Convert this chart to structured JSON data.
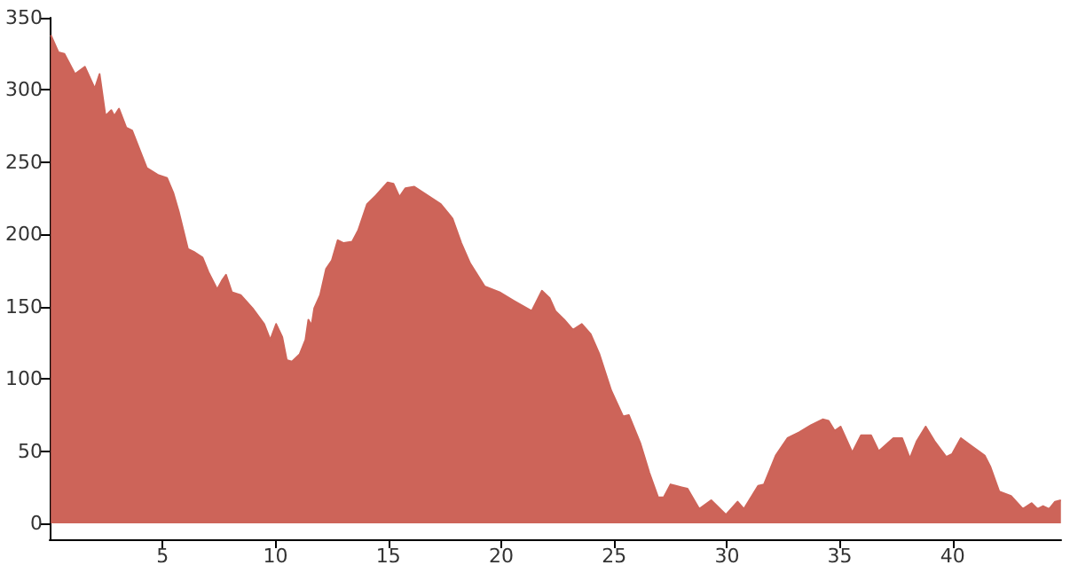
{
  "chart_data": {
    "type": "area",
    "color": "#cd6459",
    "x": [
      0.05,
      0.39,
      0.65,
      1.12,
      1.56,
      2.0,
      2.21,
      2.47,
      2.73,
      2.86,
      3.07,
      3.39,
      3.65,
      4.3,
      4.82,
      5.2,
      5.47,
      5.73,
      6.12,
      6.38,
      6.77,
      7.03,
      7.42,
      7.63,
      7.81,
      8.07,
      8.46,
      8.98,
      9.5,
      9.77,
      10.03,
      10.3,
      10.5,
      10.73,
      11.07,
      11.33,
      11.46,
      11.6,
      11.72,
      11.98,
      12.24,
      12.5,
      12.76,
      13.02,
      13.4,
      13.67,
      14.06,
      14.45,
      14.97,
      15.23,
      15.49,
      15.76,
      16.15,
      16.54,
      17.32,
      17.84,
      18.23,
      18.62,
      19.27,
      19.92,
      20.57,
      21.35,
      21.8,
      22.14,
      22.4,
      22.79,
      23.18,
      23.57,
      23.96,
      24.35,
      24.87,
      25.4,
      25.65,
      26.17,
      26.56,
      26.95,
      27.2,
      27.5,
      27.99,
      28.25,
      28.77,
      29.3,
      29.95,
      30.47,
      30.75,
      31.38,
      31.64,
      32.16,
      32.68,
      33.2,
      33.72,
      34.24,
      34.5,
      34.77,
      35.03,
      35.55,
      35.94,
      36.38,
      36.72,
      37.37,
      37.76,
      38.1,
      38.41,
      38.8,
      39.19,
      39.71,
      39.97,
      40.36,
      40.88,
      41.41,
      41.67,
      42.06,
      42.58,
      43.1,
      43.49,
      43.75,
      44.0,
      44.27,
      44.53,
      44.79
    ],
    "values": [
      338,
      326,
      325,
      311,
      316,
      301,
      311,
      282,
      286,
      282,
      287,
      274,
      272,
      246,
      241,
      239,
      229,
      215,
      190,
      188,
      184,
      174,
      162,
      168,
      172,
      160,
      158,
      149,
      138,
      127,
      138,
      129,
      113,
      112,
      117,
      127,
      141,
      137,
      149,
      158,
      176,
      182,
      196,
      194,
      195,
      203,
      221,
      227,
      236,
      235,
      226,
      232,
      233,
      229,
      221,
      211,
      194,
      180,
      164,
      160,
      154,
      147,
      161,
      156,
      147,
      141,
      134,
      138,
      131,
      117,
      92,
      74,
      75,
      55,
      35,
      18,
      18,
      27,
      25,
      24,
      10,
      16,
      6,
      15,
      10,
      26,
      27,
      47,
      59,
      63,
      68,
      72,
      71,
      64,
      67,
      49,
      61,
      61,
      50,
      59,
      59,
      45,
      57,
      67,
      57,
      46,
      48,
      59,
      53,
      47,
      39,
      22,
      19,
      10,
      14,
      10,
      12,
      10,
      15,
      16
    ],
    "xlim": [
      0,
      44.8
    ],
    "xticks": [
      5,
      10,
      15,
      20,
      25,
      30,
      35,
      40
    ],
    "ylim": [
      -11,
      350
    ],
    "yticks": [
      0,
      50,
      100,
      150,
      200,
      250,
      300,
      350
    ],
    "grid": false,
    "marker": "none"
  }
}
